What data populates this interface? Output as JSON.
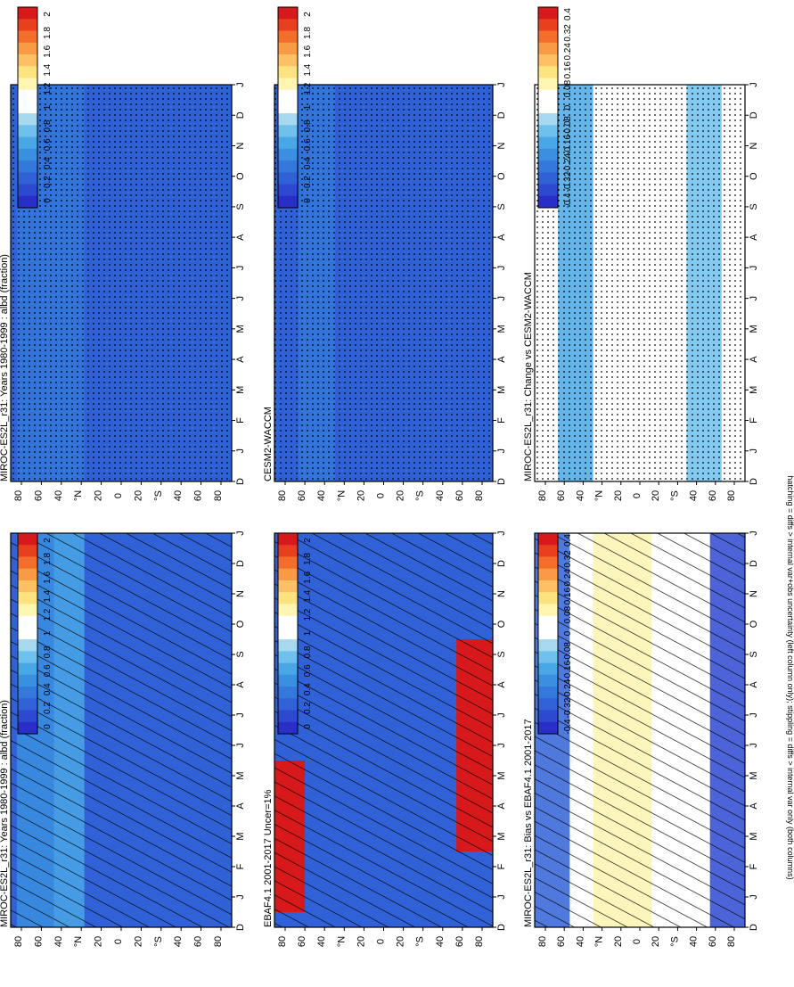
{
  "figure": {
    "footnote": "hatching = diffs > internal var+obs uncertainty (left column only); stippling = diffs > internal var only (both columns)",
    "month_labels": [
      "D",
      "J",
      "F",
      "M",
      "A",
      "M",
      "J",
      "J",
      "A",
      "S",
      "O",
      "N",
      "D",
      "J"
    ],
    "lat_labels": [
      "80",
      "60",
      "40",
      "°N",
      "20",
      "0",
      "20",
      "°S",
      "40",
      "60",
      "80"
    ]
  },
  "colorbars": {
    "albedo": {
      "labels": [
        "2",
        "1.8",
        "1.6",
        "1.4",
        "1.2",
        "1",
        "0.8",
        "0.6",
        "0.4",
        "0.2",
        "0"
      ],
      "colors": [
        "#d7191c",
        "#e8401f",
        "#f46d2b",
        "#f99a45",
        "#fdc064",
        "#fde37f",
        "#fdf5b0",
        "#ffffff",
        "#ffffff",
        "#a6d8f0",
        "#6fc0ec",
        "#4aa7e6",
        "#3a8fe0",
        "#3478db",
        "#3061d6",
        "#2d49d0",
        "#2a2ec8"
      ]
    },
    "diff": {
      "labels": [
        "0.4",
        "0.32",
        "0.24",
        "0.16",
        "0.08",
        "0",
        "-0.08",
        "-0.16",
        "-0.24",
        "-0.32",
        "-0.4"
      ],
      "colors": [
        "#d7191c",
        "#e8401f",
        "#f46d2b",
        "#f99a45",
        "#fdc064",
        "#fde37f",
        "#fdf5b0",
        "#ffffff",
        "#ffffff",
        "#a6d8f0",
        "#6fc0ec",
        "#4aa7e6",
        "#3a8fe0",
        "#3478db",
        "#3061d6",
        "#2d49d0",
        "#2a2ec8"
      ]
    }
  },
  "chart_data": [
    {
      "type": "heatmap",
      "title": "MIROC-ES2L_r31: Years 1980-1999 : albd (fraction)",
      "colorbar": "albedo",
      "pattern": "hatch",
      "x": [
        "J",
        "F",
        "M",
        "A",
        "M",
        "J",
        "J",
        "A",
        "S",
        "O",
        "N",
        "D"
      ],
      "y": [
        80,
        60,
        40,
        20,
        0,
        -20,
        -40,
        -60,
        -80
      ],
      "typical_value": 0.25,
      "zones": [
        {
          "lat": [
            30,
            55
          ],
          "value": 0.6
        },
        {
          "lat": [
            55,
            85
          ],
          "value": 0.5
        }
      ]
    },
    {
      "type": "heatmap",
      "title": "MIROC-ES2L_r31: Years 1980-1999 : albd (fraction)",
      "colorbar": "albedo",
      "pattern": "stipple",
      "x": [
        "J",
        "F",
        "M",
        "A",
        "M",
        "J",
        "J",
        "A",
        "S",
        "O",
        "N",
        "D"
      ],
      "y": [
        80,
        60,
        40,
        20,
        0,
        -20,
        -40,
        -60,
        -80
      ],
      "typical_value": 0.25,
      "zones": [
        {
          "lat": [
            30,
            85
          ],
          "value": 0.45
        }
      ]
    },
    {
      "type": "heatmap",
      "title": "EBAF4.1 2001-2017 Uncer=1%",
      "colorbar": "albedo",
      "pattern": "hatch",
      "x": [
        "J",
        "F",
        "M",
        "A",
        "M",
        "J",
        "J",
        "A",
        "S",
        "O",
        "N",
        "D"
      ],
      "y": [
        80,
        60,
        40,
        20,
        0,
        -20,
        -40,
        -60,
        -80
      ],
      "typical_value": 0.25,
      "high_zones": [
        {
          "lat": [
            65,
            90
          ],
          "months": [
            "J",
            "F",
            "M"
          ],
          "value": 1.9
        },
        {
          "lat": [
            -90,
            -60
          ],
          "months": [
            "M",
            "J",
            "J",
            "A",
            "S"
          ],
          "value": 1.9
        }
      ]
    },
    {
      "type": "heatmap",
      "title": "CESM2-WACCM",
      "colorbar": "albedo",
      "pattern": "stipple",
      "x": [
        "J",
        "F",
        "M",
        "A",
        "M",
        "J",
        "J",
        "A",
        "S",
        "O",
        "N",
        "D"
      ],
      "y": [
        80,
        60,
        40,
        20,
        0,
        -20,
        -40,
        -60,
        -80
      ],
      "typical_value": 0.25,
      "zones": [
        {
          "lat": [
            40,
            70
          ],
          "value": 0.45
        }
      ]
    },
    {
      "type": "heatmap",
      "title": "MIROC-ES2L_r31: Bias vs EBAF4.1 2001-2017",
      "colorbar": "diff",
      "pattern": "hatch",
      "x": [
        "J",
        "F",
        "M",
        "A",
        "M",
        "J",
        "J",
        "A",
        "S",
        "O",
        "N",
        "D"
      ],
      "y": [
        80,
        60,
        40,
        20,
        0,
        -20,
        -40,
        -60,
        -80
      ],
      "typical_value": 0.03,
      "zones": [
        {
          "lat": [
            60,
            90
          ],
          "value": -0.3
        },
        {
          "lat": [
            -90,
            -60
          ],
          "value": -0.35
        },
        {
          "lat": [
            -10,
            40
          ],
          "value": 0.1
        }
      ]
    },
    {
      "type": "heatmap",
      "title": "MIROC-ES2L_r31: Change vs CESM2-WACCM",
      "colorbar": "diff",
      "pattern": "stipple",
      "x": [
        "J",
        "F",
        "M",
        "A",
        "M",
        "J",
        "J",
        "A",
        "S",
        "O",
        "N",
        "D"
      ],
      "y": [
        80,
        60,
        40,
        20,
        0,
        -20,
        -40,
        -60,
        -80
      ],
      "typical_value": 0.0,
      "zones": [
        {
          "lat": [
            40,
            70
          ],
          "value": -0.12
        },
        {
          "lat": [
            -70,
            -40
          ],
          "value": -0.1
        },
        {
          "lat": [
            -20,
            20
          ],
          "value": 0.06
        }
      ]
    }
  ]
}
